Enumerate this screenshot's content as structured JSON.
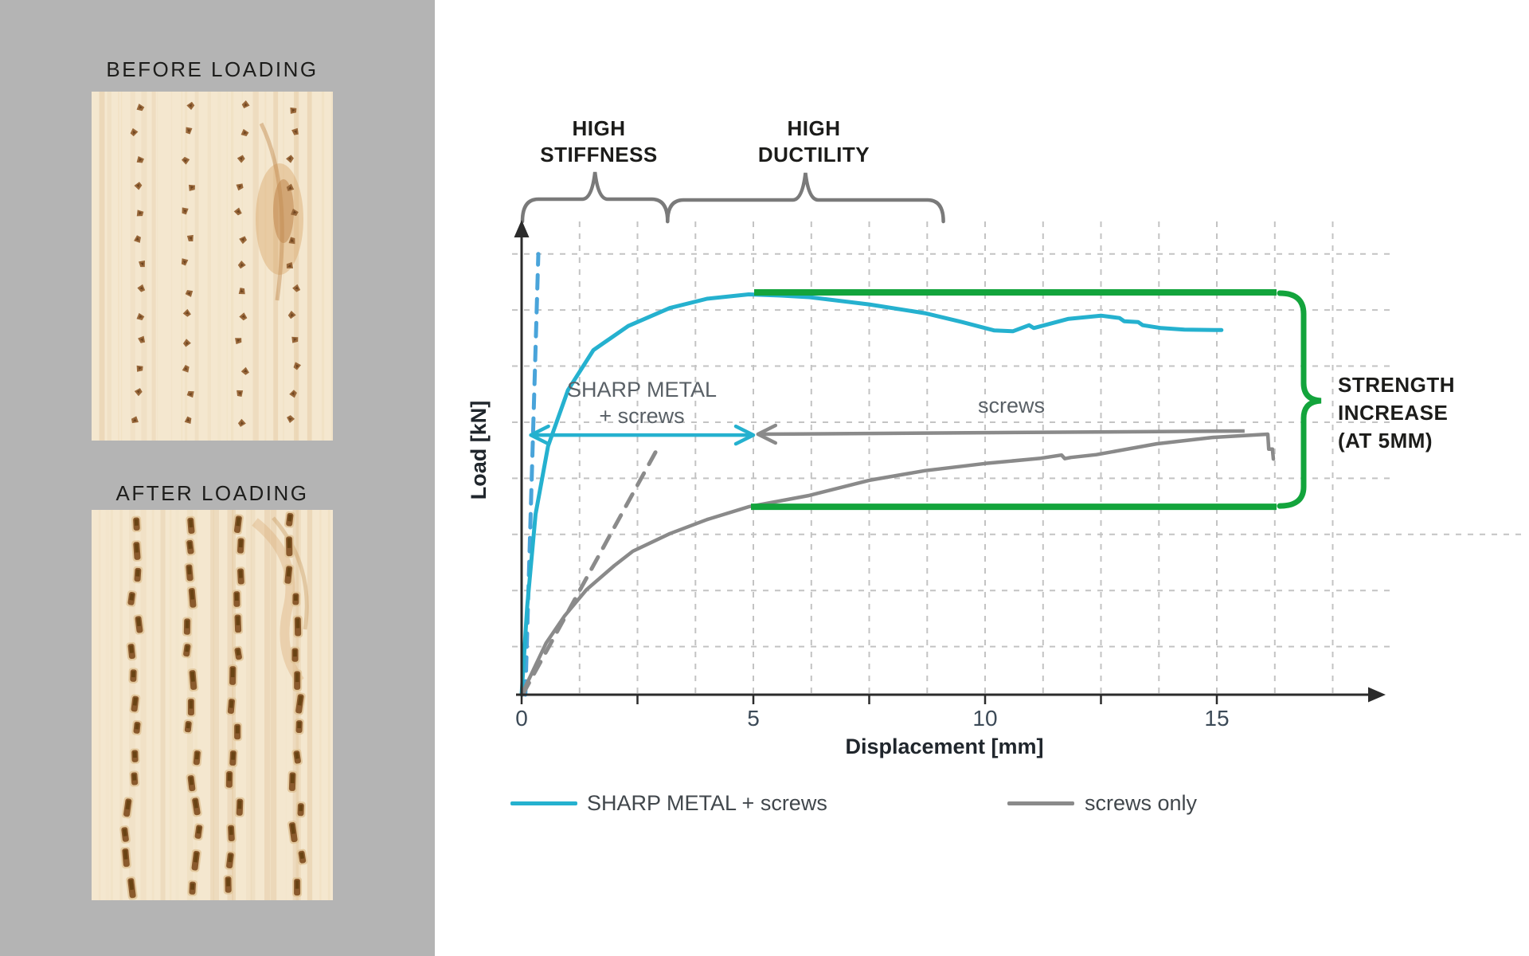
{
  "sidebar": {
    "panels": [
      {
        "title": "BEFORE LOADING"
      },
      {
        "title": "AFTER LOADING"
      }
    ]
  },
  "chart": {
    "y_axis_label": "Load [kN]",
    "x_axis_label": "Displacement [mm]",
    "x_ticks": [
      {
        "label": "0",
        "mm": 0
      },
      {
        "label": "5",
        "mm": 5
      },
      {
        "label": "10",
        "mm": 10
      },
      {
        "label": "15",
        "mm": 15
      }
    ],
    "annotations": {
      "stiffness_lines": [
        "HIGH",
        "STIFFNESS"
      ],
      "ductility_lines": [
        "HIGH",
        "DUCTILITY"
      ],
      "sharp_metal_lines": [
        "SHARP METAL",
        "+ screws"
      ],
      "screws_label": "screws",
      "strength_lines": [
        "STRENGTH",
        "INCREASE",
        "(AT 5MM)"
      ]
    },
    "legend": [
      {
        "label": "SHARP METAL + screws",
        "color": "#25b1cf"
      },
      {
        "label": "screws only",
        "color": "#8a8a8a"
      }
    ]
  },
  "colors": {
    "sidebar_bg": "#b4b4b4",
    "accent_cyan": "#25b1cf",
    "accent_blue_dashed": "#49a4da",
    "curve_gray": "#8a8a8a",
    "brace_gray": "#7a7a7a",
    "accent_green": "#13a43c",
    "grid": "#c3c3c3",
    "axis": "#2b2b2b",
    "text_dark": "#1d1d1b",
    "text_gray": "#596066",
    "tick_text": "#3c4a57"
  },
  "chart_data": {
    "type": "line",
    "title": "",
    "xlabel": "Displacement [mm]",
    "ylabel": "Load [kN]",
    "x_range_mm": [
      0,
      18.5
    ],
    "y_axis_numeric_labels": false,
    "y_units_note": "relative load units, SHARP METAL peak = 100 (y axis has no printed numbers)",
    "grid": "dashed",
    "legend_position": "bottom",
    "series": [
      {
        "name": "SHARP METAL + screws",
        "color": "#25b1cf",
        "style": "solid",
        "points": [
          [
            0,
            0
          ],
          [
            0.12,
            22
          ],
          [
            0.3,
            45
          ],
          [
            0.57,
            62
          ],
          [
            1.0,
            76
          ],
          [
            1.55,
            86
          ],
          [
            2.3,
            92
          ],
          [
            3.2,
            96.5
          ],
          [
            4.0,
            98.8
          ],
          [
            4.9,
            99.9
          ],
          [
            5.6,
            99.6
          ],
          [
            6.2,
            99.2
          ],
          [
            7.5,
            97.4
          ],
          [
            8.7,
            95.2
          ],
          [
            9.5,
            93.0
          ],
          [
            10.2,
            90.9
          ],
          [
            10.6,
            90.7
          ],
          [
            10.95,
            92.2
          ],
          [
            11.05,
            91.5
          ],
          [
            11.8,
            93.8
          ],
          [
            12.5,
            94.6
          ],
          [
            12.9,
            94.0
          ],
          [
            13.0,
            93.2
          ],
          [
            13.3,
            93.0
          ],
          [
            13.4,
            92.2
          ],
          [
            13.8,
            91.5
          ],
          [
            14.3,
            91.1
          ],
          [
            15.1,
            91.0
          ]
        ]
      },
      {
        "name": "screws only",
        "color": "#8a8a8a",
        "style": "solid",
        "points": [
          [
            0,
            0
          ],
          [
            0.53,
            12.9
          ],
          [
            0.93,
            19.7
          ],
          [
            1.4,
            26.2
          ],
          [
            2.0,
            32.2
          ],
          [
            2.4,
            35.8
          ],
          [
            3.2,
            40.2
          ],
          [
            4.0,
            43.7
          ],
          [
            4.9,
            46.9
          ],
          [
            6.2,
            49.7
          ],
          [
            7.5,
            53.5
          ],
          [
            8.7,
            55.9
          ],
          [
            10.0,
            57.7
          ],
          [
            11.2,
            59.0
          ],
          [
            11.65,
            59.8
          ],
          [
            11.72,
            58.9
          ],
          [
            11.85,
            59.2
          ],
          [
            12.4,
            59.9
          ],
          [
            13.7,
            62.6
          ],
          [
            14.9,
            64.2
          ],
          [
            16.1,
            65.0
          ],
          [
            16.12,
            61.3
          ],
          [
            16.2,
            61.3
          ],
          [
            16.22,
            58.8
          ]
        ]
      }
    ],
    "guides": [
      {
        "name": "SHARP METAL initial stiffness (dashed)",
        "style": "dashed",
        "color": "#49a4da",
        "from": [
          0.08,
          0
        ],
        "to": [
          0.36,
          110
        ]
      },
      {
        "name": "screws initial stiffness (dashed)",
        "style": "dashed",
        "color": "#8b8b8b",
        "from": [
          0.02,
          0
        ],
        "to": [
          2.95,
          61.8
        ]
      }
    ],
    "markers": {
      "green_top_line_load": 100.4,
      "green_bottom_line_load": 46.9,
      "green_lines_x_mm": [
        5.0,
        16.3
      ],
      "strength_increase_brace": "right side, between green lines",
      "sharp_metal_range_arrow": {
        "y_load": 64.8,
        "x_mm": [
          0.2,
          5.0
        ]
      },
      "screws_range_arrow": {
        "y_load": 65.2,
        "x_mm": [
          5.1,
          15.6
        ]
      },
      "stiffness_brace_x_mm": [
        0.0,
        3.15
      ],
      "ductility_brace_x_mm": [
        3.15,
        9.1
      ]
    }
  }
}
